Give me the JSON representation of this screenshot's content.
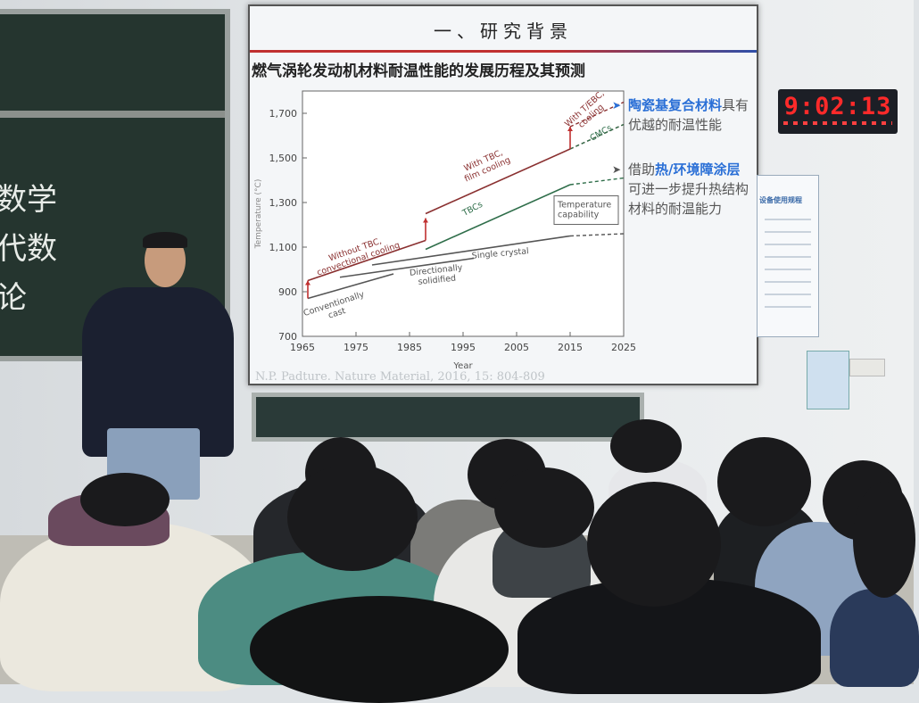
{
  "board_chalk": [
    "数学",
    "代数",
    "论"
  ],
  "slide": {
    "title": "一、研究背景",
    "heading": "燃气涡轮发动机材料耐温性能的发展历程及其预测",
    "bullets": [
      {
        "parts": [
          {
            "t": "陶瓷基复合材料",
            "hl": true
          },
          {
            "t": "具有优越的耐温性能",
            "hl": false
          }
        ]
      },
      {
        "parts": [
          {
            "t": "借助",
            "hl": false
          },
          {
            "t": "热/环境障涂层",
            "hl": true
          },
          {
            "t": "可进一步提升热结构材料的耐温能力",
            "hl": false
          }
        ]
      }
    ],
    "citation": "N.P. Padture. Nature Material, 2016, 15: 804-809",
    "accent": "#2a6fd6"
  },
  "chart_data": {
    "type": "line",
    "xlabel": "Year",
    "ylabel": "Temperature (°C)",
    "xlim": [
      1965,
      2025
    ],
    "ylim": [
      700,
      1800
    ],
    "xticks": [
      "1965",
      "1975",
      "1985",
      "1995",
      "2005",
      "2015",
      "2025"
    ],
    "yticks": [
      "700",
      "900",
      "1,100",
      "1,300",
      "1,500",
      "1,700"
    ],
    "series": [
      {
        "name": "Conventionally cast",
        "color": "#555",
        "points": [
          [
            1966,
            870
          ],
          [
            1982,
            980
          ]
        ]
      },
      {
        "name": "Directionally solidified",
        "color": "#555",
        "points": [
          [
            1972,
            965
          ],
          [
            1997,
            1050
          ]
        ]
      },
      {
        "name": "Single crystal",
        "color": "#555",
        "points": [
          [
            1978,
            1020
          ],
          [
            2015,
            1150
          ]
        ],
        "projection": [
          [
            2015,
            1150
          ],
          [
            2025,
            1160
          ]
        ]
      },
      {
        "name": "TBCs",
        "color": "#2f6e4a",
        "points": [
          [
            1988,
            1090
          ],
          [
            2015,
            1380
          ]
        ],
        "projection": [
          [
            2015,
            1380
          ],
          [
            2025,
            1410
          ]
        ]
      },
      {
        "name": "Without TBC, convectional cooling",
        "color": "#8a3030",
        "points": [
          [
            1966,
            950
          ],
          [
            1988,
            1130
          ]
        ]
      },
      {
        "name": "With TBC, film cooling",
        "color": "#8a3030",
        "points": [
          [
            1988,
            1250
          ],
          [
            2015,
            1540
          ]
        ],
        "projection": [
          [
            2015,
            1540
          ],
          [
            2025,
            1650
          ]
        ]
      },
      {
        "name": "CMCs",
        "color": "#2f6e4a",
        "projection": [
          [
            2015,
            1540
          ],
          [
            2025,
            1650
          ]
        ]
      },
      {
        "name": "With T/EBC, cooling",
        "color": "#8a3030",
        "projection": [
          [
            2015,
            1640
          ],
          [
            2025,
            1750
          ]
        ]
      }
    ],
    "annotations": [
      "Temperature capability"
    ]
  },
  "clock": {
    "time": "9:02:13"
  },
  "poster": {
    "title": "设备使用规程"
  }
}
